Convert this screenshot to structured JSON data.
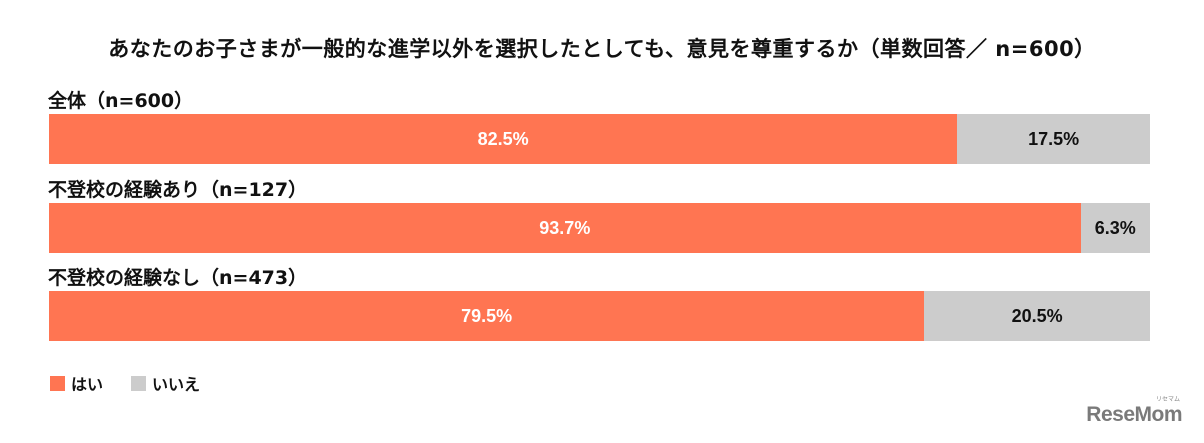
{
  "title": "あなたのお子さまが一般的な進学以外を選択したとしても、意見を尊重するか（単数回答／ n=600）",
  "colors": {
    "yes": "#ff7552",
    "no": "#cccccc"
  },
  "legend": [
    {
      "label": "はい",
      "color": "#ff7552"
    },
    {
      "label": "いいえ",
      "color": "#cccccc"
    }
  ],
  "groups": [
    {
      "label": "全体（n=600）",
      "yes": 82.5,
      "no": 17.5,
      "yes_label": "82.5%",
      "no_label": "17.5%"
    },
    {
      "label": "不登校の経験あり（n=127）",
      "yes": 93.7,
      "no": 6.3,
      "yes_label": "93.7%",
      "no_label": "6.3%"
    },
    {
      "label": "不登校の経験なし（n=473）",
      "yes": 79.5,
      "no": 20.5,
      "yes_label": "79.5%",
      "no_label": "20.5%"
    }
  ],
  "logo": {
    "text": "ReseMom",
    "ruby": "リセマム"
  },
  "chart_data": {
    "type": "bar",
    "orientation": "horizontal",
    "stacked": true,
    "title": "あなたのお子さまが一般的な進学以外を選択したとしても、意見を尊重するか（単数回答／ n=600）",
    "categories": [
      "全体（n=600）",
      "不登校の経験あり（n=127）",
      "不登校の経験なし（n=473）"
    ],
    "series": [
      {
        "name": "はい",
        "values": [
          82.5,
          93.7,
          79.5
        ],
        "color": "#ff7552"
      },
      {
        "name": "いいえ",
        "values": [
          17.5,
          6.3,
          20.5
        ],
        "color": "#cccccc"
      }
    ],
    "xlabel": "",
    "ylabel": "",
    "xlim": [
      0,
      100
    ],
    "grid": false,
    "legend_position": "bottom-left",
    "data_labels": true
  }
}
